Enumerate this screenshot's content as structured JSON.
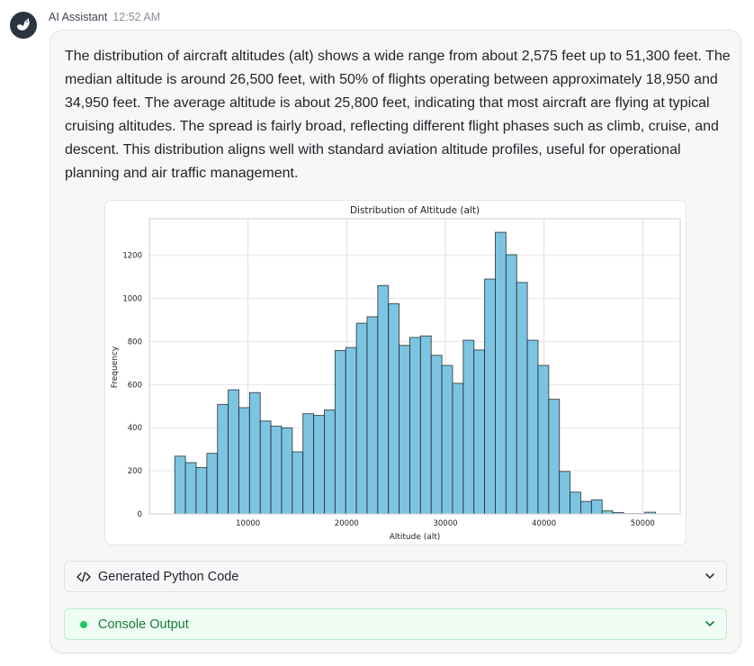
{
  "header": {
    "sender": "AI Assistant",
    "time": "12:52 AM"
  },
  "message": {
    "text": "The distribution of aircraft altitudes (alt) shows a wide range from about 2,575 feet up to 51,300 feet. The median altitude is around 26,500 feet, with 50% of flights operating between approximately 18,950 and 34,950 feet. The average altitude is about 25,800 feet, indicating that most aircraft are flying at typical cruising altitudes. The spread is fairly broad, reflecting different flight phases such as climb, cruise, and descent. This distribution aligns well with standard aviation altitude profiles, useful for operational planning and air traffic management."
  },
  "panels": {
    "code_label": "Generated Python Code",
    "console_label": "Console Output",
    "code_icon": "code-brackets-icon",
    "console_icon": "status-dot-icon",
    "console_color": "#22c55e"
  },
  "chart_data": {
    "type": "bar",
    "title": "Distribution of Altitude (alt)",
    "xlabel": "Altitude (alt)",
    "ylabel": "Frequency",
    "bin_start": 2575,
    "bin_end": 51300,
    "values": [
      268,
      238,
      215,
      281,
      508,
      576,
      493,
      563,
      431,
      407,
      399,
      288,
      465,
      457,
      482,
      758,
      772,
      885,
      915,
      1060,
      975,
      782,
      819,
      826,
      736,
      689,
      606,
      806,
      761,
      1090,
      1307,
      1203,
      1074,
      806,
      689,
      532,
      197,
      101,
      58,
      65,
      14,
      6,
      1,
      1,
      8
    ],
    "xticks": [
      10000,
      20000,
      30000,
      40000,
      50000
    ],
    "yticks": [
      0,
      200,
      400,
      600,
      800,
      1000,
      1200
    ],
    "xlim": [
      0,
      53800
    ],
    "ylim": [
      0,
      1370
    ],
    "grid": true,
    "bar_color": "#7cc5e2",
    "edge_color": "#1c1c1c"
  }
}
